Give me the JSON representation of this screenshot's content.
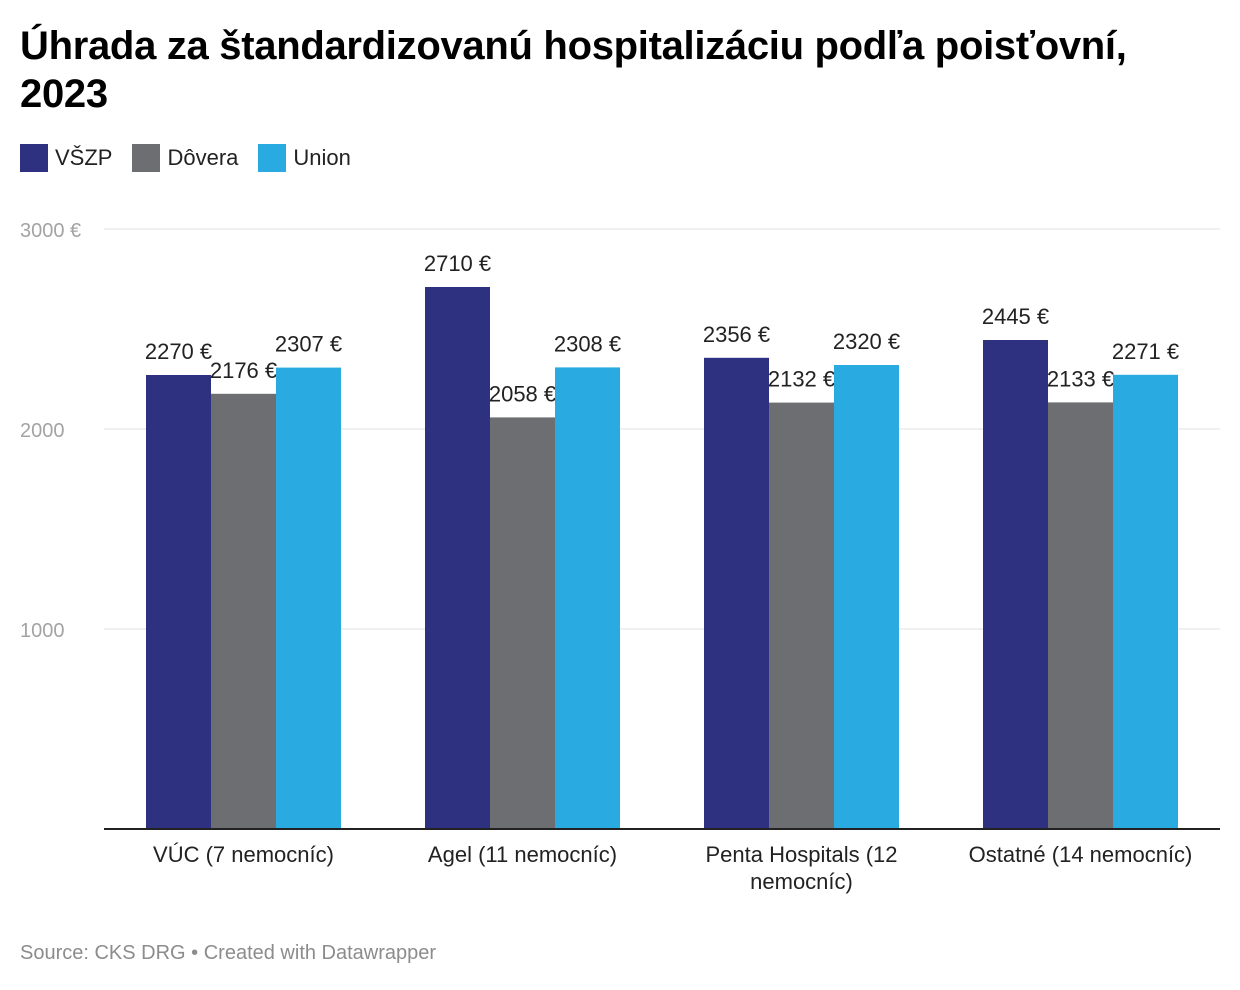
{
  "title": "Úhrada za štandardizovanú hospitalizáciu podľa poisťovní, 2023",
  "footer": "Source: CKS DRG • Created with Datawrapper",
  "chart_data": {
    "type": "bar",
    "title": "Úhrada za štandardizovanú hospitalizáciu podľa poisťovní, 2023",
    "categories": [
      "VÚC (7 nemocníc)",
      "Agel (11 nemocníc)",
      "Penta Hospitals (12 nemocníc)",
      "Ostatné (14 nemocníc)"
    ],
    "series": [
      {
        "name": "VŠZP",
        "color": "#2d3180",
        "values": [
          2270,
          2710,
          2356,
          2445
        ],
        "labels": [
          "2270 €",
          "2710 €",
          "2356 €",
          "2445 €"
        ]
      },
      {
        "name": "Dôvera",
        "color": "#6d6e71",
        "values": [
          2176,
          2058,
          2132,
          2133
        ],
        "labels": [
          "2176 €",
          "2058 €",
          "2132 €",
          "2133 €"
        ]
      },
      {
        "name": "Union",
        "color": "#29aae1",
        "values": [
          2307,
          2308,
          2320,
          2271
        ],
        "labels": [
          "2307 €",
          "2308 €",
          "2320 €",
          "2271 €"
        ]
      }
    ],
    "y_ticks": [
      1000,
      2000,
      3000
    ],
    "y_tick_labels": [
      "1000",
      "2000",
      "3000 €"
    ],
    "ylim": [
      0,
      3000
    ],
    "xlabel": "",
    "ylabel": "",
    "grid": true,
    "legend_position": "top-left"
  }
}
